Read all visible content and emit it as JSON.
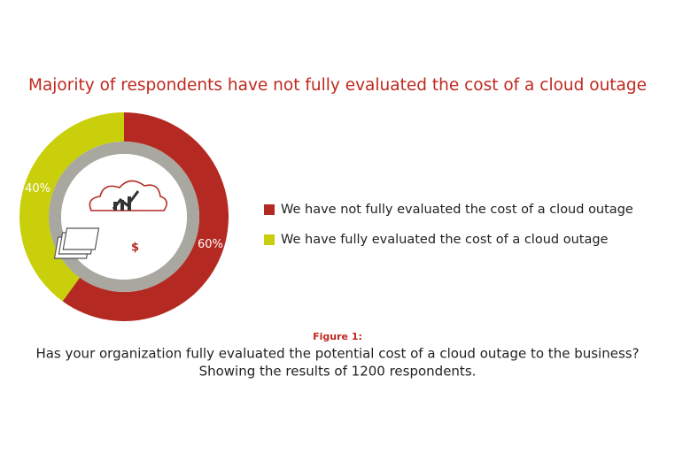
{
  "chart_data": {
    "type": "pie",
    "title": "Majority of respondents have not fully evaluated the cost of a cloud outage",
    "categories": [
      "We have not fully evaluated the cost of a cloud outage",
      "We have fully evaluated the cost of a cloud outage"
    ],
    "values": [
      60,
      40
    ],
    "value_labels": [
      "60%",
      "40%"
    ],
    "colors": [
      "#b42a22",
      "#c9cf0a"
    ],
    "donut": true,
    "legend": "right",
    "figure_label": "Figure 1:",
    "caption": [
      "Has your organization fully evaluated the potential cost of a cloud outage to the business?",
      "Showing the results of 1200 respondents."
    ]
  }
}
